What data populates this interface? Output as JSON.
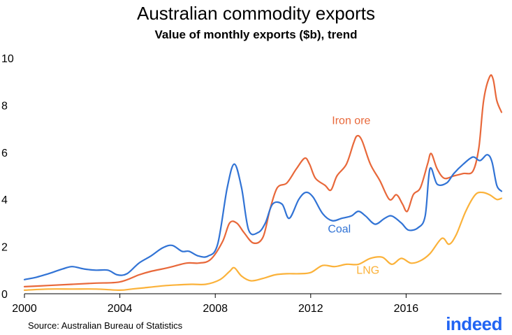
{
  "chart_data": {
    "type": "line",
    "title": "Australian commodity exports",
    "subtitle": "Value of monthly exports ($b), trend",
    "xlabel": "",
    "ylabel": "",
    "xlim": [
      2000,
      2019.6
    ],
    "ylim": [
      0,
      10
    ],
    "x_ticks": [
      "2000",
      "2004",
      "2008",
      "2012",
      "2016"
    ],
    "y_ticks": [
      "0",
      "2",
      "4",
      "6",
      "8",
      "10"
    ],
    "grid": false,
    "series": [
      {
        "name": "Iron ore",
        "color": "#e8683a",
        "label": "Iron ore",
        "points": [
          [
            2000,
            0.3
          ],
          [
            2001,
            0.35
          ],
          [
            2002,
            0.4
          ],
          [
            2003,
            0.45
          ],
          [
            2004,
            0.5
          ],
          [
            2004.8,
            0.8
          ],
          [
            2005.3,
            0.95
          ],
          [
            2006,
            1.1
          ],
          [
            2006.8,
            1.3
          ],
          [
            2007.3,
            1.3
          ],
          [
            2007.8,
            1.45
          ],
          [
            2008.3,
            2.2
          ],
          [
            2008.6,
            3.0
          ],
          [
            2008.9,
            3.0
          ],
          [
            2009.2,
            2.6
          ],
          [
            2009.6,
            2.15
          ],
          [
            2010,
            2.4
          ],
          [
            2010.3,
            3.6
          ],
          [
            2010.6,
            4.5
          ],
          [
            2011,
            4.7
          ],
          [
            2011.4,
            5.3
          ],
          [
            2011.75,
            5.75
          ],
          [
            2011.95,
            5.5
          ],
          [
            2012.2,
            4.9
          ],
          [
            2012.6,
            4.6
          ],
          [
            2012.85,
            4.4
          ],
          [
            2013.1,
            5.0
          ],
          [
            2013.5,
            5.5
          ],
          [
            2013.8,
            6.4
          ],
          [
            2013.95,
            6.7
          ],
          [
            2014.15,
            6.5
          ],
          [
            2014.5,
            5.5
          ],
          [
            2014.9,
            4.8
          ],
          [
            2015.3,
            4.0
          ],
          [
            2015.6,
            4.2
          ],
          [
            2015.85,
            3.8
          ],
          [
            2016.05,
            3.5
          ],
          [
            2016.3,
            4.2
          ],
          [
            2016.6,
            4.5
          ],
          [
            2016.9,
            5.5
          ],
          [
            2017.05,
            5.95
          ],
          [
            2017.3,
            5.3
          ],
          [
            2017.6,
            4.9
          ],
          [
            2018.0,
            5.0
          ],
          [
            2018.4,
            5.1
          ],
          [
            2018.8,
            5.2
          ],
          [
            2019.05,
            6.2
          ],
          [
            2019.25,
            8.2
          ],
          [
            2019.5,
            9.2
          ],
          [
            2019.65,
            9.1
          ],
          [
            2019.8,
            8.2
          ],
          [
            2020.0,
            7.7
          ]
        ]
      },
      {
        "name": "Coal",
        "color": "#3173d5",
        "label": "Coal",
        "points": [
          [
            2000,
            0.6
          ],
          [
            2000.5,
            0.7
          ],
          [
            2001,
            0.85
          ],
          [
            2001.6,
            1.05
          ],
          [
            2002,
            1.15
          ],
          [
            2002.5,
            1.05
          ],
          [
            2003,
            1.0
          ],
          [
            2003.5,
            1.0
          ],
          [
            2003.9,
            0.8
          ],
          [
            2004.3,
            0.85
          ],
          [
            2004.8,
            1.3
          ],
          [
            2005.3,
            1.6
          ],
          [
            2005.8,
            1.95
          ],
          [
            2006.2,
            2.05
          ],
          [
            2006.6,
            1.8
          ],
          [
            2006.9,
            1.8
          ],
          [
            2007.3,
            1.6
          ],
          [
            2007.7,
            1.6
          ],
          [
            2008.1,
            2.1
          ],
          [
            2008.5,
            4.5
          ],
          [
            2008.8,
            5.5
          ],
          [
            2009.1,
            4.5
          ],
          [
            2009.4,
            2.7
          ],
          [
            2009.8,
            2.6
          ],
          [
            2010.1,
            3.0
          ],
          [
            2010.4,
            3.8
          ],
          [
            2010.8,
            3.8
          ],
          [
            2011.1,
            3.2
          ],
          [
            2011.5,
            4.0
          ],
          [
            2011.8,
            4.3
          ],
          [
            2012.1,
            4.1
          ],
          [
            2012.5,
            3.4
          ],
          [
            2012.9,
            3.1
          ],
          [
            2013.3,
            3.2
          ],
          [
            2013.7,
            3.3
          ],
          [
            2014.0,
            3.5
          ],
          [
            2014.3,
            3.3
          ],
          [
            2014.7,
            2.95
          ],
          [
            2015.1,
            3.2
          ],
          [
            2015.4,
            3.3
          ],
          [
            2015.8,
            3.0
          ],
          [
            2016.1,
            2.7
          ],
          [
            2016.5,
            2.8
          ],
          [
            2016.8,
            3.3
          ],
          [
            2017.0,
            5.3
          ],
          [
            2017.3,
            4.65
          ],
          [
            2017.7,
            4.7
          ],
          [
            2018.0,
            5.1
          ],
          [
            2018.4,
            5.5
          ],
          [
            2018.8,
            5.8
          ],
          [
            2019.1,
            5.65
          ],
          [
            2019.4,
            5.9
          ],
          [
            2019.6,
            5.6
          ],
          [
            2019.8,
            4.6
          ],
          [
            2020.0,
            4.35
          ]
        ]
      },
      {
        "name": "LNG",
        "color": "#fbb23a",
        "label": "LNG",
        "points": [
          [
            2000,
            0.15
          ],
          [
            2001,
            0.2
          ],
          [
            2002,
            0.2
          ],
          [
            2003,
            0.2
          ],
          [
            2004,
            0.15
          ],
          [
            2004.5,
            0.2
          ],
          [
            2005,
            0.25
          ],
          [
            2006,
            0.35
          ],
          [
            2007,
            0.4
          ],
          [
            2007.6,
            0.4
          ],
          [
            2008.2,
            0.6
          ],
          [
            2008.6,
            0.95
          ],
          [
            2008.8,
            1.1
          ],
          [
            2009.1,
            0.75
          ],
          [
            2009.5,
            0.55
          ],
          [
            2010,
            0.65
          ],
          [
            2010.5,
            0.8
          ],
          [
            2011.0,
            0.85
          ],
          [
            2011.5,
            0.85
          ],
          [
            2012.0,
            0.9
          ],
          [
            2012.5,
            1.2
          ],
          [
            2013.0,
            1.15
          ],
          [
            2013.5,
            1.25
          ],
          [
            2014.0,
            1.25
          ],
          [
            2014.5,
            1.5
          ],
          [
            2015.0,
            1.55
          ],
          [
            2015.4,
            1.25
          ],
          [
            2015.8,
            1.5
          ],
          [
            2016.2,
            1.3
          ],
          [
            2016.6,
            1.4
          ],
          [
            2017.0,
            1.7
          ],
          [
            2017.5,
            2.35
          ],
          [
            2017.8,
            2.1
          ],
          [
            2018.1,
            2.5
          ],
          [
            2018.5,
            3.5
          ],
          [
            2018.9,
            4.2
          ],
          [
            2019.2,
            4.3
          ],
          [
            2019.5,
            4.2
          ],
          [
            2019.8,
            4.0
          ],
          [
            2020.0,
            4.05
          ]
        ]
      }
    ],
    "source": "Source: Australian Bureau of Statistics",
    "logo": "indeed"
  }
}
